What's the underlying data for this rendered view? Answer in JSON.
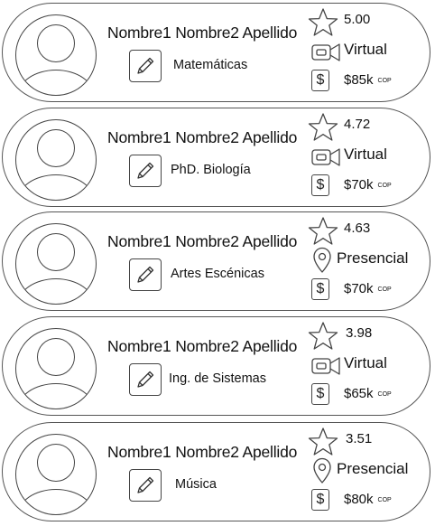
{
  "tutors": [
    {
      "name": "Nombre1 Nombre2 Apellido",
      "subject": "Matemáticas",
      "rating": "5.00",
      "mode": "Virtual",
      "mode_icon": "video-icon",
      "price": "$85k",
      "currency": "COP"
    },
    {
      "name": "Nombre1 Nombre2 Apellido",
      "subject": "PhD. Biología",
      "rating": "4.72",
      "mode": "Virtual",
      "mode_icon": "video-icon",
      "price": "$70k",
      "currency": "COP"
    },
    {
      "name": "Nombre1 Nombre2 Apellido",
      "subject": "Artes Escénicas",
      "rating": "4.63",
      "mode": "Presencial",
      "mode_icon": "location-pin-icon",
      "price": "$70k",
      "currency": "COP"
    },
    {
      "name": "Nombre1 Nombre2 Apellido",
      "subject": "Ing. de Sistemas",
      "rating": "3.98",
      "mode": "Virtual",
      "mode_icon": "video-icon",
      "price": "$65k",
      "currency": "COP"
    },
    {
      "name": "Nombre1 Nombre2 Apellido",
      "subject": "Música",
      "rating": "3.51",
      "mode": "Presencial",
      "mode_icon": "location-pin-icon",
      "price": "$80k",
      "currency": "COP"
    }
  ],
  "icons": {
    "rating": "star-icon",
    "edit": "pencil-icon",
    "price": "dollar-icon"
  },
  "colors": {
    "stroke": "#444444",
    "background": "#ffffff",
    "text": "#111111"
  }
}
